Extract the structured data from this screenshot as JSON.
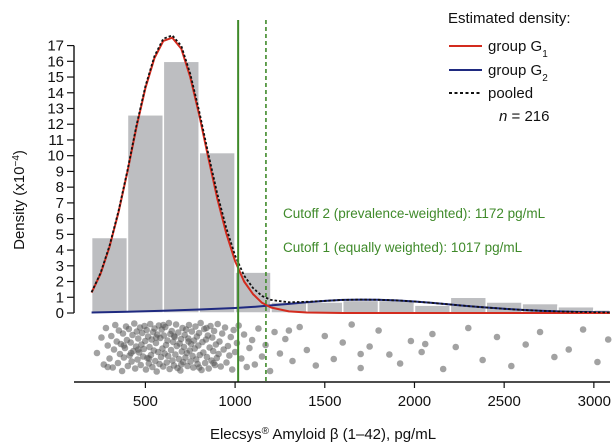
{
  "chart_data": {
    "type": "histogram+density",
    "xlabel_main": "Elecsys",
    "xlabel_sup": "®",
    "xlabel_rest": " Amyloid β (1–42), pg/mL",
    "ylabel_main": "Density (x10",
    "ylabel_sup": "−4",
    "ylabel_end": ")",
    "xlim": [
      180,
      3090
    ],
    "ylim": [
      0,
      17.8
    ],
    "x_ticks": [
      500,
      1000,
      1500,
      2000,
      2500,
      3000
    ],
    "x_tick_labels": [
      "500",
      "1000",
      "1500",
      "2000",
      "2500",
      "3000"
    ],
    "y_ticks": [
      0,
      1,
      2,
      3,
      4,
      5,
      6,
      7,
      8,
      9,
      10,
      11,
      12,
      13,
      14,
      15,
      16,
      17
    ],
    "y_tick_labels": [
      "0",
      "1",
      "2",
      "3",
      "4",
      "5",
      "6",
      "7",
      "8",
      "9",
      "10",
      "11",
      "12",
      "13",
      "14",
      "15",
      "16",
      "17"
    ],
    "histogram": {
      "color": "#bdbec1",
      "bin_edges": [
        200,
        400,
        600,
        800,
        1000,
        1200,
        1400,
        1600,
        1800,
        2000,
        2200,
        2400,
        2600,
        2800,
        3000,
        3200
      ],
      "heights": [
        4.8,
        12.6,
        16.0,
        10.2,
        2.6,
        0.7,
        0.7,
        0.8,
        0.8,
        0.5,
        1.0,
        0.7,
        0.6,
        0.4,
        0.2
      ]
    },
    "series": [
      {
        "name_main": "group G",
        "name_sub": "1",
        "color": "#d32b1e",
        "style": "solid",
        "x": [
          200,
          250,
          300,
          350,
          400,
          450,
          500,
          550,
          600,
          650,
          700,
          750,
          800,
          850,
          900,
          950,
          1000,
          1050,
          1100,
          1150,
          1200,
          1300,
          1400,
          1600,
          2000,
          2500,
          3100
        ],
        "y": [
          1.3,
          2.5,
          4.2,
          6.4,
          9.0,
          11.8,
          14.3,
          16.2,
          17.3,
          17.5,
          16.8,
          15.0,
          12.6,
          9.9,
          7.3,
          5.1,
          3.3,
          2.0,
          1.2,
          0.65,
          0.35,
          0.1,
          0.03,
          0.0,
          0.0,
          0.0,
          0.0
        ]
      },
      {
        "name_main": "group G",
        "name_sub": "2",
        "color": "#1f2a80",
        "style": "solid",
        "x": [
          200,
          400,
          600,
          800,
          1000,
          1100,
          1200,
          1300,
          1400,
          1500,
          1600,
          1700,
          1800,
          1900,
          2000,
          2100,
          2200,
          2300,
          2400,
          2500,
          2600,
          2700,
          2800,
          2900,
          3000,
          3100
        ],
        "y": [
          0.03,
          0.08,
          0.14,
          0.22,
          0.32,
          0.39,
          0.48,
          0.58,
          0.68,
          0.77,
          0.83,
          0.85,
          0.84,
          0.8,
          0.73,
          0.64,
          0.54,
          0.44,
          0.35,
          0.27,
          0.2,
          0.14,
          0.1,
          0.07,
          0.05,
          0.04
        ]
      },
      {
        "name_main": "pooled",
        "name_sub": "",
        "color": "#111111",
        "style": "dotted",
        "x": [
          200,
          250,
          300,
          350,
          400,
          450,
          500,
          550,
          600,
          650,
          700,
          750,
          800,
          850,
          900,
          950,
          1000,
          1050,
          1100,
          1150,
          1200,
          1300,
          1400,
          1500,
          1600,
          1700,
          1800,
          1900,
          2000,
          2100,
          2200,
          2300,
          2400,
          2500,
          2600,
          2700,
          2800,
          2900,
          3000,
          3100
        ],
        "y": [
          1.33,
          2.55,
          4.27,
          6.48,
          9.08,
          11.9,
          14.42,
          16.32,
          17.44,
          17.65,
          16.98,
          15.22,
          12.82,
          10.15,
          7.6,
          5.45,
          3.65,
          2.38,
          1.59,
          1.08,
          0.83,
          0.68,
          0.71,
          0.77,
          0.83,
          0.85,
          0.84,
          0.8,
          0.73,
          0.64,
          0.54,
          0.44,
          0.35,
          0.27,
          0.2,
          0.14,
          0.1,
          0.07,
          0.05,
          0.04
        ]
      }
    ],
    "cutoffs": [
      {
        "x": 1017,
        "style": "solid",
        "color": "#3f8a2a",
        "label": "Cutoff 1 (equally weighted): 1017 pg/mL"
      },
      {
        "x": 1172,
        "style": "dotted",
        "color": "#3f8a2a",
        "label": "Cutoff 2 (prevalence-weighted): 1172 pg/mL"
      }
    ],
    "legend": {
      "title": "Estimated density:",
      "n_italic": "n",
      "n_rest": " = 216",
      "position": "top-right"
    },
    "rug_points": {
      "color": "#555555",
      "x": [
        230,
        255,
        268,
        280,
        290,
        300,
        310,
        318,
        325,
        332,
        340,
        347,
        352,
        358,
        363,
        370,
        375,
        380,
        386,
        392,
        397,
        402,
        408,
        412,
        418,
        423,
        428,
        433,
        438,
        443,
        448,
        452,
        456,
        460,
        465,
        470,
        474,
        478,
        482,
        487,
        491,
        495,
        499,
        503,
        507,
        511,
        515,
        519,
        523,
        527,
        531,
        535,
        539,
        543,
        547,
        551,
        555,
        559,
        563,
        567,
        571,
        575,
        579,
        583,
        587,
        591,
        595,
        599,
        603,
        607,
        611,
        615,
        619,
        623,
        627,
        631,
        635,
        639,
        643,
        647,
        651,
        655,
        659,
        663,
        667,
        671,
        675,
        679,
        683,
        687,
        691,
        695,
        699,
        703,
        707,
        711,
        715,
        719,
        723,
        727,
        731,
        735,
        739,
        743,
        747,
        751,
        755,
        759,
        763,
        767,
        771,
        775,
        779,
        783,
        787,
        791,
        795,
        799,
        803,
        808,
        813,
        818,
        823,
        828,
        833,
        838,
        843,
        848,
        853,
        858,
        863,
        868,
        873,
        878,
        883,
        888,
        893,
        898,
        903,
        908,
        913,
        920,
        928,
        936,
        944,
        952,
        960,
        968,
        976,
        984,
        992,
        1000,
        1010,
        1020,
        1035,
        1050,
        1065,
        1080,
        1095,
        1110,
        1130,
        1150,
        1170,
        1195,
        1220,
        1250,
        1280,
        1320,
        1360,
        1400,
        1450,
        1500,
        1550,
        1600,
        1650,
        1700,
        1750,
        1800,
        1860,
        1920,
        1980,
        2040,
        2100,
        2160,
        2230,
        2300,
        2380,
        2460,
        2540,
        2620,
        2700,
        2780,
        2860,
        2940,
        3020,
        3080,
        290,
        420,
        560,
        700,
        840,
        380,
        520,
        660,
        800,
        460,
        600,
        740,
        880,
        1300,
        1700,
        2060
      ],
      "jitter": [
        0.62,
        0.31,
        0.85,
        0.12,
        0.47,
        0.73,
        0.28,
        0.91,
        0.55,
        0.06,
        0.39,
        0.82,
        0.17,
        0.64,
        0.44,
        0.98,
        0.23,
        0.71,
        0.52,
        0.09,
        0.36,
        0.88,
        0.14,
        0.67,
        0.41,
        0.79,
        0.26,
        0.58,
        0.03,
        0.93,
        0.49,
        0.19,
        0.75,
        0.33,
        0.61,
        0.11,
        0.86,
        0.45,
        0.22,
        0.69,
        0.54,
        0.08,
        0.38,
        0.95,
        0.16,
        0.72,
        0.29,
        0.83,
        0.5,
        0.04,
        0.66,
        0.35,
        0.9,
        0.2,
        0.57,
        0.13,
        0.78,
        0.42,
        0.99,
        0.25,
        0.6,
        0.07,
        0.84,
        0.32,
        0.7,
        0.15,
        0.53,
        0.89,
        0.27,
        0.63,
        0.1,
        0.46,
        0.81,
        0.37,
        0.68,
        0.02,
        0.94,
        0.24,
        0.56,
        0.18,
        0.77,
        0.4,
        0.87,
        0.3,
        0.65,
        0.05,
        0.48,
        0.92,
        0.21,
        0.74,
        0.43,
        0.97,
        0.34,
        0.59,
        0.12,
        0.8,
        0.5,
        0.26,
        0.71,
        0.15,
        0.62,
        0.88,
        0.33,
        0.06,
        0.57,
        0.79,
        0.44,
        0.19,
        0.68,
        0.91,
        0.37,
        0.53,
        0.09,
        0.75,
        0.29,
        0.84,
        0.47,
        0.22,
        0.66,
        0.02,
        0.96,
        0.4,
        0.61,
        0.14,
        0.82,
        0.35,
        0.7,
        0.27,
        0.93,
        0.51,
        0.08,
        0.77,
        0.31,
        0.58,
        0.18,
        0.86,
        0.45,
        0.72,
        0.04,
        0.64,
        0.39,
        0.89,
        0.23,
        0.55,
        0.11,
        0.81,
        0.48,
        0.67,
        0.3,
        0.95,
        0.16,
        0.6,
        0.42,
        0.07,
        0.73,
        0.25,
        0.9,
        0.52,
        0.36,
        0.85,
        0.13,
        0.69,
        0.46,
        0.98,
        0.2,
        0.63,
        0.34,
        0.78,
        0.1,
        0.56,
        0.87,
        0.28,
        0.74,
        0.41,
        0.05,
        0.92,
        0.49,
        0.17,
        0.65,
        0.83,
        0.38,
        0.6,
        0.24,
        0.94,
        0.5,
        0.12,
        0.76,
        0.3,
        0.88,
        0.45,
        0.2,
        0.7,
        0.55,
        0.15,
        0.8,
        0.35,
        0.9
      ],
      "alpha": 0.55
    }
  }
}
